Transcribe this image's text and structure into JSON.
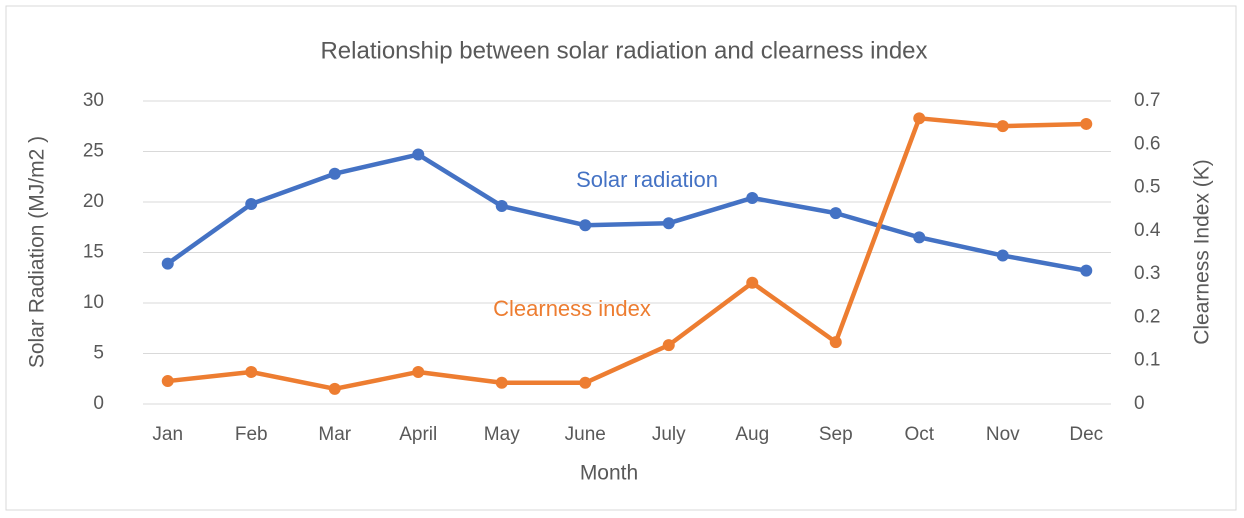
{
  "chart_data": {
    "type": "line",
    "title": "Relationship between solar radiation and clearness index",
    "x_label": "Month",
    "y_label": "Solar Radiation (MJ/m2 )",
    "y2_label": "Clearness Index (K)",
    "categories": [
      "Jan",
      "Feb",
      "Mar",
      "April",
      "May",
      "June",
      "July",
      "Aug",
      "Sep",
      "Oct",
      "Nov",
      "Dec"
    ],
    "series": [
      {
        "name": "Solar radiation",
        "color": "#4472c4",
        "values": [
          13.9,
          19.8,
          22.8,
          24.7,
          19.6,
          17.7,
          17.9,
          20.4,
          18.9,
          16.5,
          14.7,
          13.2
        ]
      },
      {
        "name": "Clearness index",
        "color": "#ed7d31",
        "axis": "y2",
        "values": [
          0.053,
          0.074,
          0.035,
          0.074,
          0.049,
          0.049,
          0.136,
          0.28,
          0.143,
          0.66,
          0.642,
          0.647
        ]
      }
    ],
    "ylim": [
      0,
      30
    ],
    "yticks": [
      0,
      5,
      10,
      15,
      20,
      25,
      30
    ],
    "y2lim": [
      0,
      0.7
    ],
    "y2ticks": [
      0,
      0.1,
      0.2,
      0.3,
      0.4,
      0.5,
      0.6,
      0.7
    ],
    "grid": true
  }
}
